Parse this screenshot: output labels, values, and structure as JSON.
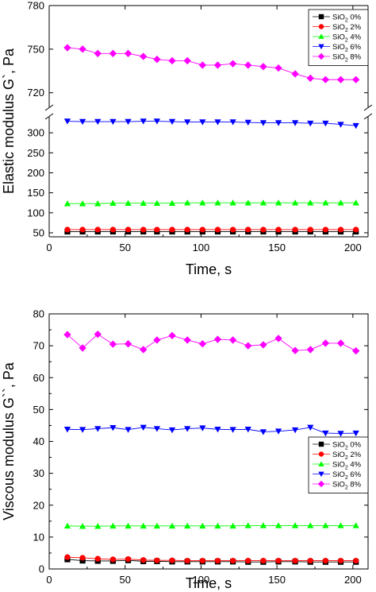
{
  "chart_data": [
    {
      "type": "line",
      "xlabel": "Time, s",
      "ylabel": "Elastic modulus G`, Pa",
      "xlim": [
        0,
        210
      ],
      "x_ticks": [
        0,
        50,
        100,
        150,
        200
      ],
      "axis_break": true,
      "lower_ylim": [
        40,
        340
      ],
      "lower_y_ticks": [
        50,
        100,
        150,
        200,
        250,
        300
      ],
      "upper_ylim": [
        710,
        780
      ],
      "upper_y_ticks": [
        720,
        750,
        780
      ],
      "legend_position": "top-right",
      "x": [
        12,
        22,
        32,
        42,
        52,
        62,
        71,
        81,
        91,
        101,
        111,
        121,
        131,
        141,
        151,
        162,
        172,
        182,
        192,
        202
      ],
      "series": [
        {
          "name": "SiO",
          "sub": "2",
          "suffix": " 0%",
          "color": "#000000",
          "marker": "square",
          "values": [
            53,
            53,
            53,
            53,
            53,
            53,
            53,
            53,
            53,
            53,
            53,
            53,
            53,
            53,
            53,
            53,
            53,
            53,
            53,
            53
          ]
        },
        {
          "name": "SiO",
          "sub": "2",
          "suffix": " 2%",
          "color": "#ff0000",
          "marker": "circle",
          "values": [
            58,
            58,
            58,
            58,
            58,
            58,
            58,
            58,
            58,
            58,
            58,
            58,
            58,
            58,
            58,
            58,
            58,
            58,
            58,
            58
          ]
        },
        {
          "name": "SiO",
          "sub": "2",
          "suffix": " 4%",
          "color": "#00ff00",
          "marker": "triangle-up",
          "values": [
            123,
            123,
            123,
            124,
            124,
            124,
            124,
            124,
            125,
            125,
            125,
            125,
            125,
            125,
            125,
            125,
            125,
            125,
            125,
            125
          ]
        },
        {
          "name": "SiO",
          "sub": "2",
          "suffix": " 6%",
          "color": "#0000ff",
          "marker": "triangle-down",
          "values": [
            329,
            328,
            328,
            328,
            328,
            329,
            329,
            328,
            327,
            327,
            327,
            327,
            326,
            325,
            325,
            325,
            324,
            324,
            321,
            318
          ]
        },
        {
          "name": "SiO",
          "sub": "2",
          "suffix": " 8%",
          "color": "#ff00ff",
          "marker": "diamond",
          "values": [
            751,
            750,
            747,
            747,
            747,
            745,
            743,
            742,
            742,
            739,
            739,
            740,
            739,
            738,
            737,
            733,
            730,
            729,
            729,
            729
          ]
        }
      ]
    },
    {
      "type": "line",
      "xlabel": "Time, s",
      "ylabel": "Viscous modulus G``, Pa",
      "xlim": [
        0,
        210
      ],
      "x_ticks": [
        0,
        50,
        100,
        150,
        200
      ],
      "ylim": [
        0,
        80
      ],
      "y_ticks": [
        0,
        10,
        20,
        30,
        40,
        50,
        60,
        70,
        80
      ],
      "legend_position": "bottom-right",
      "x": [
        12,
        22,
        32,
        42,
        52,
        62,
        71,
        81,
        91,
        101,
        111,
        121,
        131,
        141,
        151,
        162,
        172,
        182,
        192,
        202
      ],
      "series": [
        {
          "name": "SiO",
          "sub": "2",
          "suffix": " 0%",
          "color": "#000000",
          "marker": "square",
          "values": [
            3.0,
            2.6,
            2.5,
            2.5,
            2.7,
            2.4,
            2.4,
            2.3,
            2.3,
            2.3,
            2.3,
            2.3,
            2.2,
            2.2,
            2.3,
            2.3,
            2.2,
            2.2,
            2.2,
            2.2
          ]
        },
        {
          "name": "SiO",
          "sub": "2",
          "suffix": " 2%",
          "color": "#ff0000",
          "marker": "circle",
          "values": [
            3.7,
            3.5,
            3.2,
            3.0,
            3.1,
            2.8,
            2.7,
            2.7,
            2.6,
            2.6,
            2.6,
            2.6,
            2.6,
            2.6,
            2.6,
            2.6,
            2.6,
            2.6,
            2.6,
            2.6
          ]
        },
        {
          "name": "SiO",
          "sub": "2",
          "suffix": " 4%",
          "color": "#00ff00",
          "marker": "triangle-up",
          "values": [
            13.5,
            13.4,
            13.4,
            13.5,
            13.5,
            13.5,
            13.5,
            13.5,
            13.5,
            13.5,
            13.5,
            13.5,
            13.6,
            13.6,
            13.6,
            13.6,
            13.6,
            13.6,
            13.6,
            13.6
          ]
        },
        {
          "name": "SiO",
          "sub": "2",
          "suffix": " 6%",
          "color": "#0000ff",
          "marker": "triangle-down",
          "values": [
            43.8,
            43.7,
            44.0,
            44.3,
            43.7,
            44.4,
            44.0,
            43.6,
            44.0,
            44.2,
            43.8,
            43.7,
            43.8,
            43.0,
            43.2,
            43.6,
            44.4,
            42.6,
            42.5,
            42.6
          ]
        },
        {
          "name": "SiO",
          "sub": "2",
          "suffix": " 8%",
          "color": "#ff00ff",
          "marker": "diamond",
          "values": [
            73.5,
            69.3,
            73.6,
            70.5,
            70.6,
            68.8,
            71.8,
            73.2,
            71.8,
            70.6,
            72.0,
            71.8,
            70.0,
            70.3,
            72.3,
            68.5,
            68.8,
            70.8,
            70.8,
            68.4
          ]
        }
      ]
    }
  ]
}
